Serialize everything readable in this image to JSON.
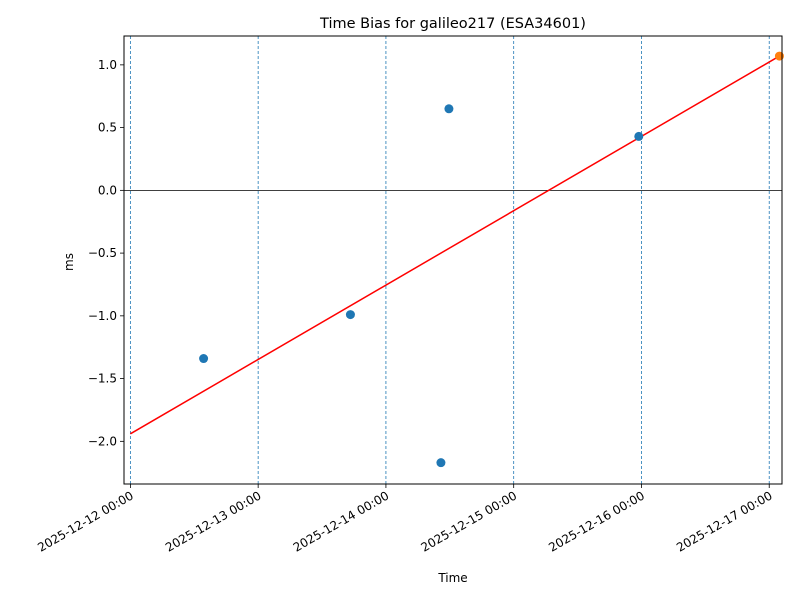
{
  "chart_data": {
    "type": "scatter",
    "title": "Time Bias for galileo217 (ESA34601)",
    "xlabel": "Time",
    "ylabel": "ms",
    "xlim": [
      "2025-12-11T22:48",
      "2025-12-17T02:24"
    ],
    "ylim": [
      -2.34,
      1.23
    ],
    "x_ticks": [
      "2025-12-12 00:00",
      "2025-12-13 00:00",
      "2025-12-14 00:00",
      "2025-12-15 00:00",
      "2025-12-16 00:00",
      "2025-12-17 00:00"
    ],
    "y_ticks": [
      1.0,
      0.5,
      0.0,
      -0.5,
      -1.0,
      -1.5,
      -2.0
    ],
    "y_tick_labels": [
      "1.0",
      "0.5",
      "0.0",
      "−0.5",
      "−1.0",
      "−1.5",
      "−2.0"
    ],
    "vertical_gridlines": [
      "2025-12-12 00:00",
      "2025-12-13 00:00",
      "2025-12-14 00:00",
      "2025-12-15 00:00",
      "2025-12-16 00:00",
      "2025-12-17 00:00"
    ],
    "zero_line": 0.0,
    "series": [
      {
        "kind": "scatter",
        "color": "#1f77b4",
        "points": [
          {
            "x": "2025-12-12T13:45",
            "y": -1.34
          },
          {
            "x": "2025-12-13T17:20",
            "y": -0.99
          },
          {
            "x": "2025-12-14T10:20",
            "y": -2.17
          },
          {
            "x": "2025-12-14T11:50",
            "y": 0.65
          },
          {
            "x": "2025-12-15T23:30",
            "y": 0.43
          }
        ]
      },
      {
        "kind": "scatter",
        "color": "#ff7f0e",
        "points": [
          {
            "x": "2025-12-17T01:55",
            "y": 1.07
          }
        ]
      },
      {
        "kind": "line",
        "color": "#ff0000",
        "points": [
          {
            "x": "2025-12-12T00:00",
            "y": -1.94
          },
          {
            "x": "2025-12-17T01:55",
            "y": 1.07
          }
        ]
      }
    ]
  }
}
